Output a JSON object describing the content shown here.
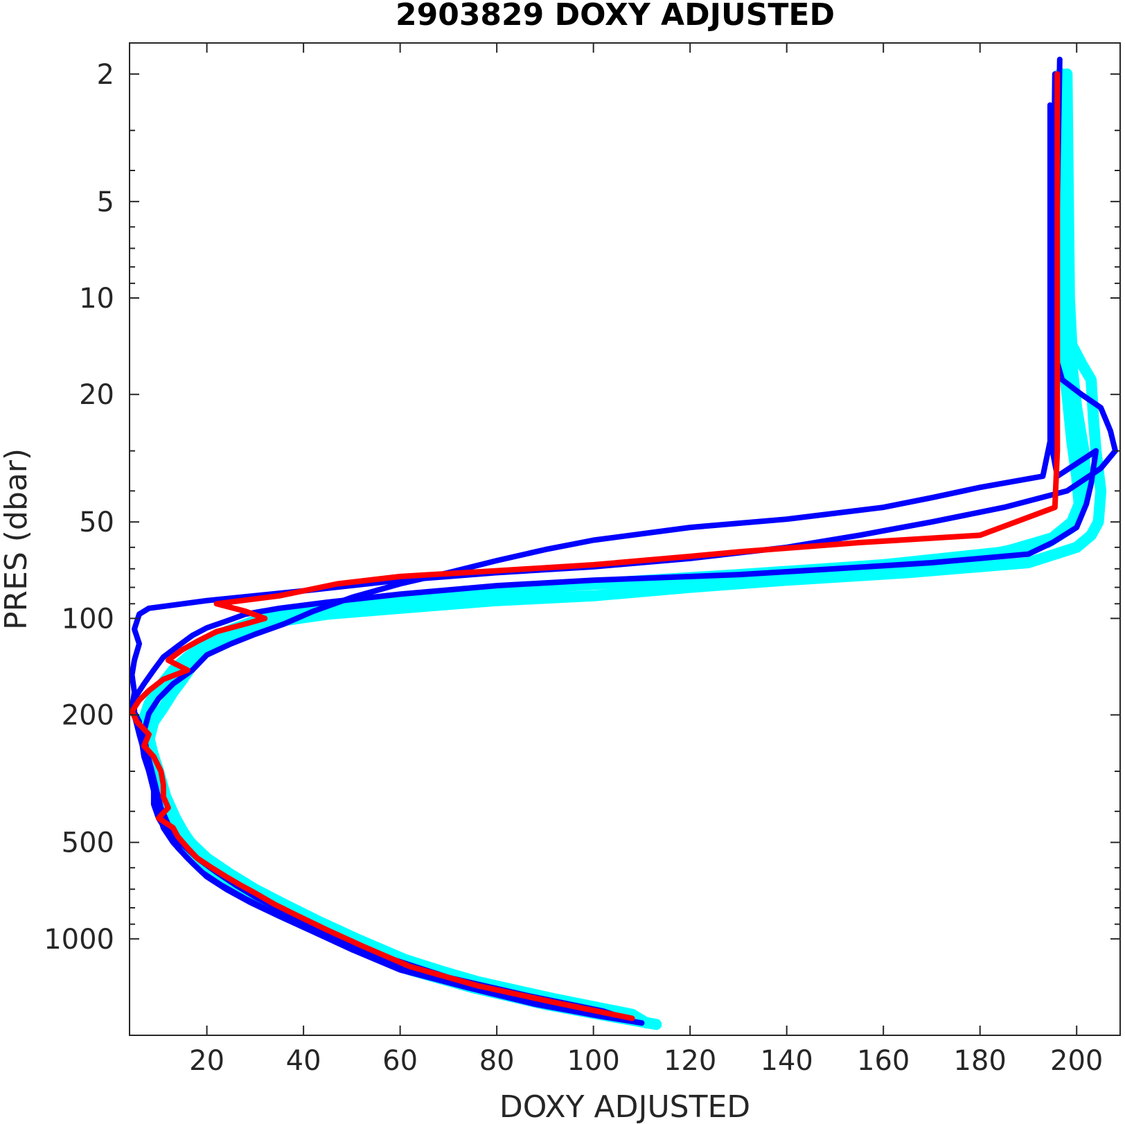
{
  "chart_data": {
    "type": "line",
    "title": "2903829  DOXY ADJUSTED",
    "xlabel": "DOXY ADJUSTED",
    "ylabel": "PRES (dbar)",
    "xlim": [
      4,
      209
    ],
    "ylim": [
      1.6,
      2000
    ],
    "y_scale": "log",
    "y_reversed": true,
    "grid": false,
    "x_ticks": [
      20,
      40,
      60,
      80,
      100,
      120,
      140,
      160,
      180,
      200
    ],
    "y_ticks": [
      2,
      5,
      10,
      20,
      50,
      100,
      200,
      500,
      1000
    ],
    "colors": {
      "cyan": "#00ffff",
      "blue": "#0000ff",
      "red": "#ff0000",
      "axis": "#262626"
    },
    "series": [
      {
        "color": "#00ffff",
        "points": [
          [
            198,
            2
          ],
          [
            198.5,
            10
          ],
          [
            199,
            14
          ],
          [
            201,
            16
          ],
          [
            203,
            18
          ],
          [
            203.5,
            24
          ],
          [
            204,
            30
          ],
          [
            205,
            40
          ],
          [
            204.5,
            50
          ],
          [
            203,
            55
          ],
          [
            200,
            60
          ],
          [
            190,
            67
          ],
          [
            165,
            72
          ],
          [
            140,
            76
          ],
          [
            120,
            80
          ],
          [
            100,
            85
          ],
          [
            80,
            88
          ],
          [
            60,
            93
          ],
          [
            45,
            97
          ],
          [
            35,
            102
          ],
          [
            30,
            107
          ],
          [
            26,
            113
          ],
          [
            22,
            120
          ],
          [
            19,
            130
          ],
          [
            17,
            140
          ],
          [
            15,
            155
          ],
          [
            13,
            170
          ],
          [
            11,
            190
          ],
          [
            9,
            210
          ],
          [
            8,
            240
          ],
          [
            9,
            280
          ],
          [
            10,
            330
          ],
          [
            11,
            390
          ],
          [
            13,
            450
          ],
          [
            15,
            520
          ],
          [
            18,
            580
          ],
          [
            22,
            640
          ],
          [
            27,
            700
          ],
          [
            32,
            770
          ],
          [
            38,
            850
          ],
          [
            45,
            950
          ],
          [
            52,
            1080
          ],
          [
            62,
            1250
          ],
          [
            75,
            1420
          ],
          [
            90,
            1600
          ],
          [
            104,
            1750
          ],
          [
            113,
            1850
          ]
        ]
      },
      {
        "color": "#00ffff",
        "points": [
          [
            197,
            2
          ],
          [
            197.5,
            12
          ],
          [
            199,
            16
          ],
          [
            200,
            22
          ],
          [
            201.5,
            30
          ],
          [
            202,
            38
          ],
          [
            201,
            45
          ],
          [
            199,
            52
          ],
          [
            194,
            58
          ],
          [
            180,
            64
          ],
          [
            150,
            70
          ],
          [
            120,
            75
          ],
          [
            90,
            80
          ],
          [
            70,
            84
          ],
          [
            55,
            88
          ],
          [
            42,
            92
          ],
          [
            34,
            97
          ],
          [
            29,
            103
          ],
          [
            24,
            110
          ],
          [
            20,
            120
          ],
          [
            16,
            132
          ],
          [
            13,
            145
          ],
          [
            10,
            165
          ],
          [
            8,
            185
          ],
          [
            7,
            205
          ],
          [
            8,
            235
          ],
          [
            9,
            270
          ],
          [
            10,
            320
          ],
          [
            12,
            380
          ],
          [
            14,
            440
          ],
          [
            17,
            510
          ],
          [
            21,
            580
          ],
          [
            26,
            650
          ],
          [
            31,
            720
          ],
          [
            37,
            800
          ],
          [
            44,
            900
          ],
          [
            52,
            1020
          ],
          [
            62,
            1180
          ],
          [
            76,
            1360
          ],
          [
            92,
            1540
          ],
          [
            108,
            1720
          ],
          [
            111,
            1830
          ]
        ]
      },
      {
        "color": "#00ffff",
        "points": [
          [
            196.5,
            2
          ],
          [
            197,
            15
          ],
          [
            198,
            20
          ],
          [
            199,
            28
          ],
          [
            200,
            36
          ],
          [
            200.5,
            44
          ],
          [
            199,
            50
          ],
          [
            195,
            56
          ],
          [
            185,
            62
          ],
          [
            160,
            68
          ],
          [
            130,
            73
          ],
          [
            100,
            78
          ],
          [
            78,
            83
          ],
          [
            62,
            87
          ],
          [
            50,
            91
          ],
          [
            40,
            95
          ],
          [
            33,
            100
          ],
          [
            27,
            108
          ],
          [
            22,
            118
          ],
          [
            18,
            128
          ],
          [
            15,
            140
          ],
          [
            12,
            155
          ],
          [
            9.5,
            175
          ],
          [
            8,
            195
          ],
          [
            7.5,
            220
          ],
          [
            8.5,
            255
          ],
          [
            10,
            300
          ],
          [
            11.5,
            360
          ],
          [
            13.5,
            420
          ],
          [
            16,
            490
          ],
          [
            20,
            560
          ],
          [
            25,
            630
          ],
          [
            30,
            700
          ],
          [
            36,
            780
          ],
          [
            43,
            880
          ],
          [
            51,
            1000
          ],
          [
            61,
            1160
          ],
          [
            74,
            1340
          ],
          [
            90,
            1520
          ],
          [
            106,
            1700
          ],
          [
            110,
            1800
          ]
        ]
      },
      {
        "color": "#0000ff",
        "points": [
          [
            196.5,
            1.8
          ],
          [
            196,
            5
          ],
          [
            195.5,
            10
          ],
          [
            195.5,
            15
          ],
          [
            197,
            18
          ],
          [
            201,
            20
          ],
          [
            205,
            22
          ],
          [
            207,
            26
          ],
          [
            208,
            30
          ],
          [
            205,
            34
          ],
          [
            198,
            40
          ],
          [
            185,
            45
          ],
          [
            170,
            50
          ],
          [
            155,
            55
          ],
          [
            140,
            60
          ],
          [
            120,
            65
          ],
          [
            100,
            69
          ],
          [
            80,
            72
          ],
          [
            60,
            76
          ],
          [
            40,
            82
          ],
          [
            20,
            88
          ],
          [
            8,
            93
          ],
          [
            6,
            97
          ],
          [
            5,
            108
          ],
          [
            6,
            120
          ],
          [
            5,
            135
          ],
          [
            4.5,
            150
          ],
          [
            5,
            170
          ],
          [
            4.5,
            190
          ],
          [
            6,
            210
          ],
          [
            6.5,
            240
          ],
          [
            7,
            270
          ],
          [
            8,
            300
          ],
          [
            9,
            340
          ],
          [
            9,
            380
          ],
          [
            10,
            420
          ],
          [
            12,
            470
          ],
          [
            14,
            520
          ],
          [
            17,
            580
          ],
          [
            20,
            640
          ],
          [
            24,
            700
          ],
          [
            29,
            770
          ],
          [
            35,
            850
          ],
          [
            42,
            950
          ],
          [
            50,
            1080
          ],
          [
            60,
            1250
          ],
          [
            74,
            1420
          ],
          [
            88,
            1600
          ],
          [
            102,
            1750
          ],
          [
            110,
            1830
          ]
        ]
      },
      {
        "color": "#0000ff",
        "points": [
          [
            195.5,
            2
          ],
          [
            195,
            10
          ],
          [
            195,
            20
          ],
          [
            195,
            30
          ],
          [
            196,
            36
          ],
          [
            204,
            30
          ],
          [
            203,
            38
          ],
          [
            202,
            44
          ],
          [
            200,
            52
          ],
          [
            195,
            58
          ],
          [
            190,
            63
          ],
          [
            170,
            67
          ],
          [
            150,
            70
          ],
          [
            130,
            73
          ],
          [
            100,
            76
          ],
          [
            80,
            79
          ],
          [
            60,
            84
          ],
          [
            45,
            89
          ],
          [
            35,
            93
          ],
          [
            28,
            97
          ],
          [
            24,
            102
          ],
          [
            20,
            107
          ],
          [
            17,
            113
          ],
          [
            14,
            122
          ],
          [
            11,
            132
          ],
          [
            9,
            145
          ],
          [
            7,
            160
          ],
          [
            5,
            178
          ],
          [
            5,
            200
          ],
          [
            6,
            230
          ],
          [
            7,
            260
          ],
          [
            8,
            300
          ],
          [
            9,
            345
          ],
          [
            10,
            400
          ],
          [
            11,
            450
          ],
          [
            13,
            500
          ],
          [
            16,
            560
          ],
          [
            19,
            620
          ],
          [
            23,
            680
          ],
          [
            28,
            750
          ],
          [
            34,
            830
          ],
          [
            41,
            920
          ],
          [
            48,
            1030
          ],
          [
            58,
            1200
          ],
          [
            72,
            1380
          ],
          [
            88,
            1560
          ],
          [
            104,
            1730
          ],
          [
            108,
            1800
          ]
        ]
      },
      {
        "color": "#0000ff",
        "points": [
          [
            194.5,
            2.5
          ],
          [
            194.5,
            10
          ],
          [
            194.5,
            20
          ],
          [
            194.5,
            28
          ],
          [
            193,
            36
          ],
          [
            180,
            39
          ],
          [
            170,
            42
          ],
          [
            160,
            45
          ],
          [
            140,
            49
          ],
          [
            120,
            52
          ],
          [
            100,
            57
          ],
          [
            90,
            61
          ],
          [
            80,
            66
          ],
          [
            70,
            72
          ],
          [
            60,
            78
          ],
          [
            50,
            86
          ],
          [
            42,
            95
          ],
          [
            36,
            104
          ],
          [
            30,
            112
          ],
          [
            25,
            120
          ],
          [
            20,
            130
          ],
          [
            17,
            145
          ],
          [
            13,
            160
          ],
          [
            10,
            178
          ],
          [
            8,
            198
          ],
          [
            7,
            225
          ],
          [
            7.5,
            258
          ],
          [
            8.5,
            295
          ],
          [
            9.5,
            340
          ],
          [
            10.5,
            390
          ],
          [
            12,
            440
          ],
          [
            14.5,
            500
          ],
          [
            18,
            560
          ],
          [
            22,
            620
          ],
          [
            26,
            680
          ],
          [
            30,
            740
          ],
          [
            35,
            810
          ],
          [
            41,
            890
          ],
          [
            48,
            990
          ],
          [
            57,
            1140
          ],
          [
            70,
            1320
          ],
          [
            86,
            1500
          ],
          [
            102,
            1680
          ],
          [
            107,
            1780
          ]
        ]
      },
      {
        "color": "#ff0000",
        "points": [
          [
            196,
            2
          ],
          [
            196,
            10
          ],
          [
            196,
            20
          ],
          [
            196,
            30
          ],
          [
            195.5,
            45
          ],
          [
            180,
            55
          ],
          [
            155,
            58
          ],
          [
            130,
            62
          ],
          [
            120,
            64
          ],
          [
            100,
            68
          ],
          [
            80,
            71
          ],
          [
            60,
            74
          ],
          [
            47,
            78
          ],
          [
            35,
            85
          ],
          [
            22,
            90
          ],
          [
            28,
            95
          ],
          [
            32,
            100
          ],
          [
            28,
            104
          ],
          [
            22,
            110
          ],
          [
            18,
            118
          ],
          [
            15,
            125
          ],
          [
            12,
            135
          ],
          [
            16,
            145
          ],
          [
            11,
            155
          ],
          [
            8,
            168
          ],
          [
            6,
            180
          ],
          [
            4.5,
            195
          ],
          [
            5.5,
            210
          ],
          [
            8,
            230
          ],
          [
            7,
            250
          ],
          [
            9,
            270
          ],
          [
            10.5,
            300
          ],
          [
            11,
            330
          ],
          [
            11,
            360
          ],
          [
            12,
            390
          ],
          [
            10,
            420
          ],
          [
            13,
            450
          ],
          [
            14,
            480
          ],
          [
            16,
            520
          ],
          [
            18,
            560
          ],
          [
            21,
            600
          ],
          [
            24,
            640
          ],
          [
            27,
            680
          ],
          [
            30,
            720
          ],
          [
            34,
            780
          ],
          [
            39,
            850
          ],
          [
            45,
            940
          ],
          [
            52,
            1050
          ],
          [
            62,
            1220
          ],
          [
            76,
            1400
          ],
          [
            92,
            1580
          ],
          [
            108,
            1770
          ]
        ]
      }
    ]
  }
}
